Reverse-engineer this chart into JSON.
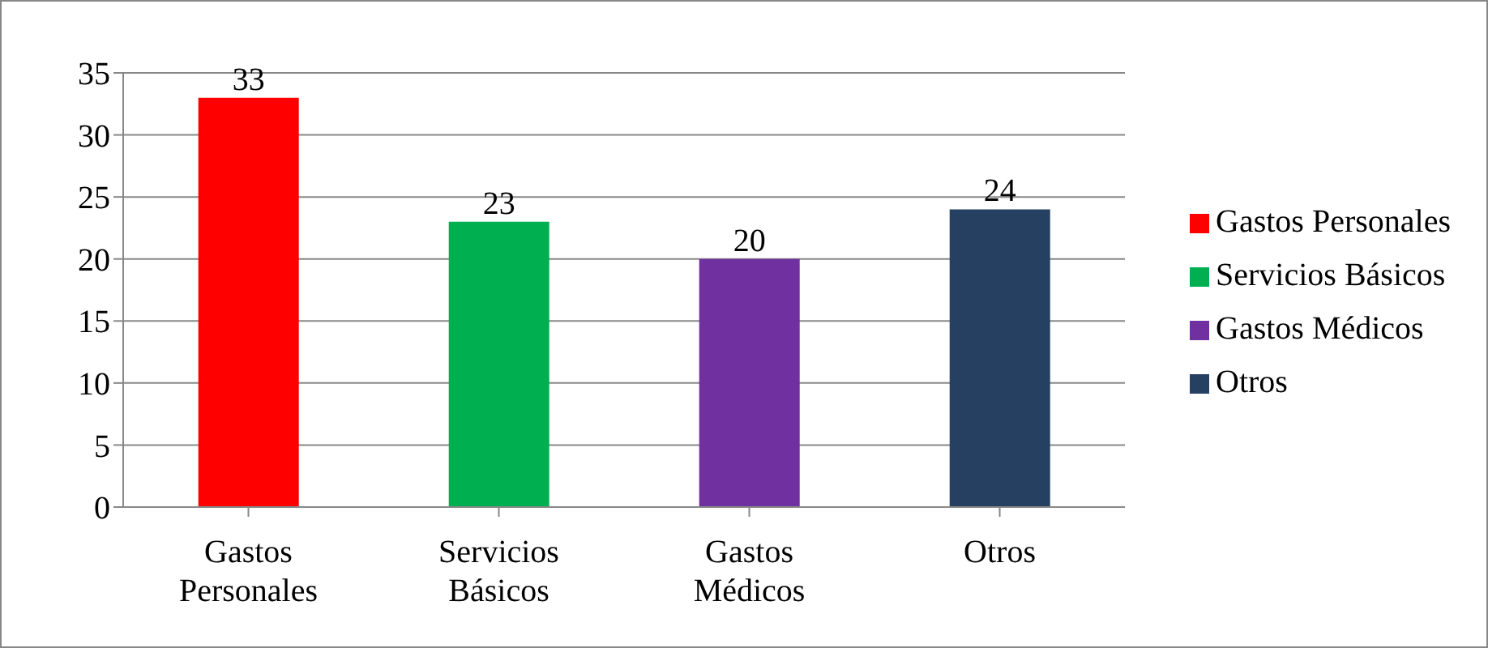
{
  "chart_data": {
    "type": "bar",
    "categories": [
      "Gastos Personales",
      "Servicios Básicos",
      "Gastos Médicos",
      "Otros"
    ],
    "series": [
      {
        "name": "Gastos Personales",
        "color": "#ff0000",
        "values": [
          33,
          null,
          null,
          null
        ]
      },
      {
        "name": "Servicios Básicos",
        "color": "#00b050",
        "values": [
          null,
          23,
          null,
          null
        ]
      },
      {
        "name": "Gastos Médicos",
        "color": "#7030a0",
        "values": [
          null,
          null,
          20,
          null
        ]
      },
      {
        "name": "Otros",
        "color": "#254061",
        "values": [
          null,
          null,
          null,
          24
        ]
      }
    ],
    "stacked": true,
    "ylim": [
      0,
      35
    ],
    "yticks": [
      0,
      5,
      10,
      15,
      20,
      25,
      30,
      35
    ],
    "grid": "y",
    "legend": "right",
    "data_labels": true
  }
}
